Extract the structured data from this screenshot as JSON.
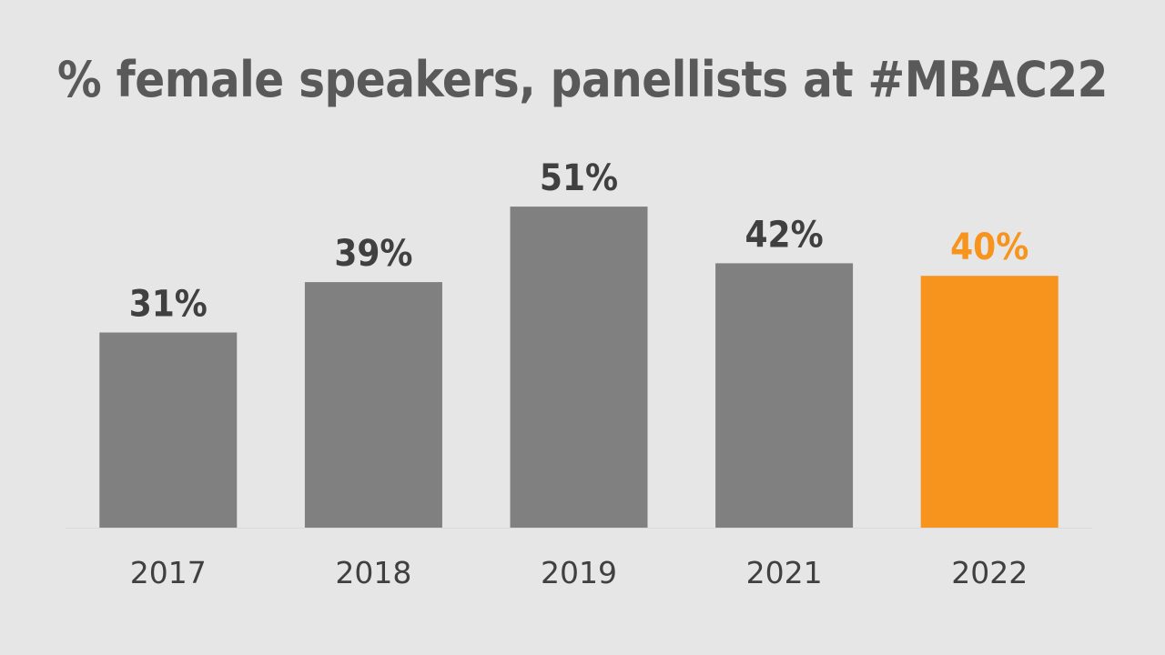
{
  "chart_data": {
    "type": "bar",
    "title": "% female speakers, panellists at #MBAC22",
    "categories": [
      "2017",
      "2018",
      "2019",
      "2021",
      "2022"
    ],
    "values": [
      31,
      39,
      51,
      42,
      40
    ],
    "data_labels": [
      "31%",
      "39%",
      "51%",
      "42%",
      "40%"
    ],
    "ylim": [
      0,
      60
    ],
    "grid": false,
    "legend": "none",
    "bar_colors": [
      "#808080",
      "#808080",
      "#808080",
      "#808080",
      "#f7941d"
    ],
    "label_colors": [
      "#404040",
      "#404040",
      "#404040",
      "#404040",
      "#f7941d"
    ],
    "baseline_color": "#d9d9d9",
    "title_color": "#595959"
  }
}
